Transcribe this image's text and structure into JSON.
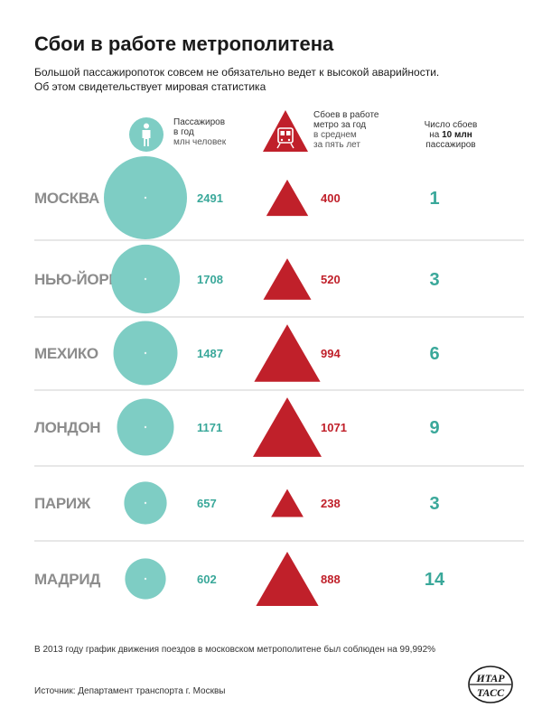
{
  "title": "Сбои в работе метрополитена",
  "subtitle": {
    "line1": "Большой пассажиропоток совсем не обязательно ведет к высокой аварийности.",
    "line2": "Об этом свидетельствует мировая статистика"
  },
  "headers": {
    "passengers": {
      "l1": "Пассажиров",
      "l2": "в год",
      "l3": "млн человек"
    },
    "failures": {
      "l1": "Сбоев в работе",
      "l2": "метро за год",
      "l3": "в среднем",
      "l4": "за пять лет"
    },
    "rate": {
      "l1": "Число сбоев",
      "l2a": "на ",
      "l2b": "10 млн",
      "l3": "пассажиров"
    }
  },
  "icons": {
    "passengers": "person-icon",
    "failures": "train-warning-icon",
    "logo": "itar-tass-logo"
  },
  "colors": {
    "circle": "#7ecdc4",
    "triangle": "#c0202a",
    "teal_text": "#3aa89a",
    "city": "#8c8c8c"
  },
  "chart_data": {
    "type": "table",
    "categories": [
      "МОСКВА",
      "НЬЮ-ЙОРК",
      "МЕХИКО",
      "ЛОНДОН",
      "ПАРИЖ",
      "МАДРИД"
    ],
    "series": [
      {
        "name": "Пассажиров в год млн человек",
        "values": [
          2491,
          1708,
          1487,
          1171,
          657,
          602
        ]
      },
      {
        "name": "Сбоев в работе метро за год в среднем за пять лет",
        "values": [
          400,
          520,
          994,
          1071,
          238,
          888
        ]
      },
      {
        "name": "Число сбоев на 10 млн пассажиров",
        "values": [
          1,
          3,
          6,
          9,
          3,
          14
        ]
      }
    ]
  },
  "footnote": "В 2013 году график движения поездов в московском метрополитене был соблюден на 99,992%",
  "source": "Источник: Департамент транспорта г. Москвы",
  "logo_text": {
    "top": "ИТАР",
    "bottom": "ТАСС"
  }
}
